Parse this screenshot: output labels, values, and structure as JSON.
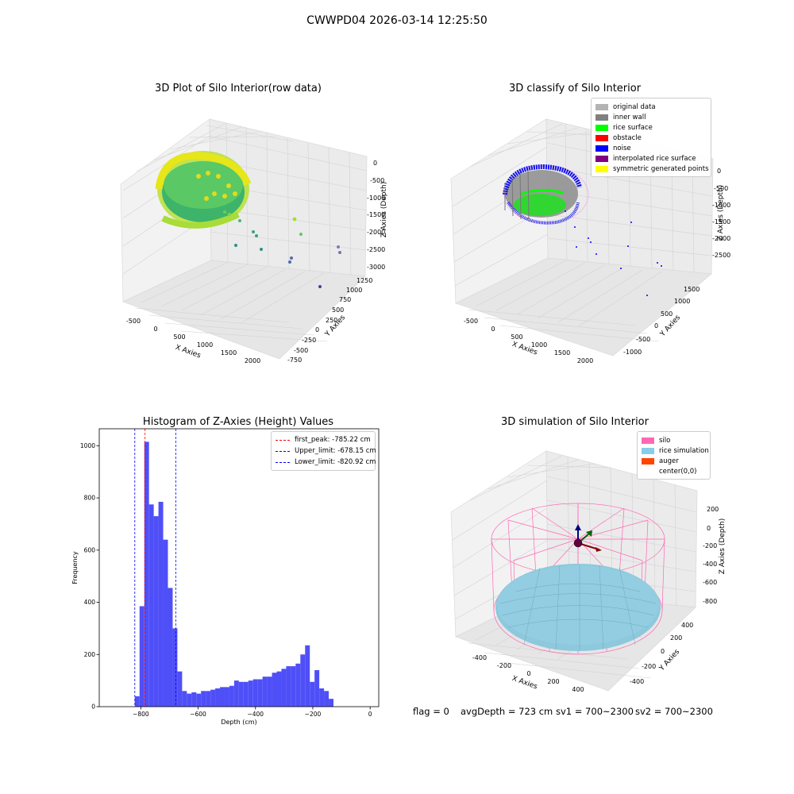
{
  "figure": {
    "title": "CWWPD04 2026-03-14 12:25:50",
    "info": {
      "flag": "flag = 0",
      "avg_depth": "avgDepth = 723 cm",
      "sv1": "sv1 = 700~2300",
      "sv2": "sv2 = 700~2300"
    }
  },
  "panels": {
    "raw": {
      "title": "3D Plot of Silo Interior(row data)",
      "xlabel": "X Axies",
      "ylabel": "Y Axies",
      "zlabel": "Z Axies (Depth)",
      "xticks": [
        "-500",
        "0",
        "500",
        "1000",
        "1500",
        "2000"
      ],
      "yticks": [
        "-750",
        "-500",
        "-250",
        "0",
        "250",
        "500",
        "750",
        "1000",
        "1250"
      ],
      "zticks": [
        "0",
        "-500",
        "-1000",
        "-1500",
        "-2000",
        "-2500",
        "-3000"
      ]
    },
    "classify": {
      "title": "3D classify of Silo Interior",
      "xlabel": "X Axies",
      "ylabel": "Y Axies",
      "zlabel": "Z Axies (Depth)",
      "xticks": [
        "-500",
        "0",
        "500",
        "1000",
        "1500",
        "2000"
      ],
      "yticks": [
        "-1000",
        "-500",
        "0",
        "500",
        "1000",
        "1500"
      ],
      "zticks": [
        "0",
        "-500",
        "-1000",
        "-1500",
        "-2000",
        "-2500"
      ],
      "legend": [
        {
          "label": "original data",
          "color": "#b3b3b3"
        },
        {
          "label": "inner wall",
          "color": "#808080"
        },
        {
          "label": "rice surface",
          "color": "#00ff00"
        },
        {
          "label": "obstacle",
          "color": "#ff0000"
        },
        {
          "label": "noise",
          "color": "#0000ff"
        },
        {
          "label": "interpolated rice surface",
          "color": "#800080"
        },
        {
          "label": "symmetric generated points",
          "color": "#ffff00"
        }
      ]
    },
    "simulation": {
      "title": "3D simulation of Silo Interior",
      "xlabel": "X Axies",
      "ylabel": "Y Axies",
      "zlabel": "Z Axies (Depth)",
      "xticks": [
        "-400",
        "-200",
        "0",
        "200",
        "400"
      ],
      "yticks": [
        "-400",
        "-200",
        "0",
        "200",
        "400"
      ],
      "zticks": [
        "200",
        "0",
        "-200",
        "-400",
        "-600",
        "-800"
      ],
      "legend": [
        {
          "label": "silo",
          "color": "#ff69b4"
        },
        {
          "label": "rice simulation",
          "color": "#87ceeb"
        },
        {
          "label": "auger",
          "color": "#ff4500"
        },
        {
          "label": "center(0,0)",
          "color": ""
        }
      ]
    }
  },
  "chart_data": {
    "type": "bar",
    "title": "Histogram of Z-Axies (Height) Values",
    "xlabel": "Depth (cm)",
    "ylabel": "Frequency",
    "xlim": [
      -945,
      30
    ],
    "ylim": [
      0,
      1065
    ],
    "xticks": [
      -800,
      -600,
      -400,
      -200,
      0
    ],
    "yticks": [
      0,
      200,
      400,
      600,
      800,
      1000
    ],
    "bin_start": -820.92,
    "bin_width": 16.5,
    "color": "#4f4ff8",
    "values": [
      40,
      385,
      1015,
      775,
      730,
      785,
      640,
      455,
      300,
      135,
      60,
      50,
      55,
      50,
      60,
      60,
      65,
      70,
      75,
      75,
      80,
      100,
      95,
      95,
      100,
      105,
      105,
      115,
      115,
      130,
      135,
      145,
      155,
      155,
      165,
      200,
      235,
      95,
      140,
      70,
      60,
      30
    ],
    "vlines": [
      {
        "label": "first_peak: -785.22 cm",
        "x": -785.22,
        "color": "#ff0000"
      },
      {
        "label": "Upper_limit: -678.15 cm",
        "x": -678.15,
        "color": "#0000ff"
      },
      {
        "label": "Lower_limit: -820.92 cm",
        "x": -820.92,
        "color": "#0000ff"
      }
    ],
    "legend_position": "upper right"
  }
}
